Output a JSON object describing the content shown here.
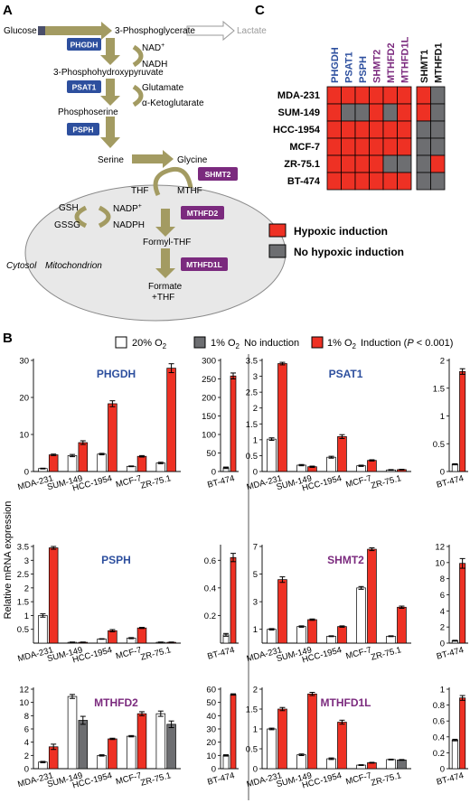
{
  "panels": {
    "a": "A",
    "b": "B",
    "c": "C"
  },
  "pathway": {
    "glucose": "Glucose",
    "pg3": "3-Phosphoglycerate",
    "lactate": "Lactate",
    "phgdh": "PHGDH",
    "nadp": "NAD",
    "nadp_sup": "+",
    "nadh": "NADH",
    "php": "3-Phosphohydroxypyruvate",
    "psat1": "PSAT1",
    "glutamate": "Glutamate",
    "akg": "α-Ketoglutarate",
    "phosphoserine": "Phosphoserine",
    "psph": "PSPH",
    "serine": "Serine",
    "glycine": "Glycine",
    "shmt2": "SHMT2",
    "thf": "THF",
    "mthf": "MTHF",
    "gsh": "GSH",
    "gssg": "GSSG",
    "nadpplus": "NADP",
    "nadpplus_sup": "+",
    "nadph": "NADPH",
    "mthfd2": "MTHFD2",
    "formylthf": "Formyl-THF",
    "mthfd1l": "MTHFD1L",
    "formate1": "Formate",
    "formate2": "+THF",
    "cytosol": "Cytosol",
    "mito": "Mitochondrion"
  },
  "heatmap": {
    "genes_blue": [
      "PHGDH",
      "PSAT1",
      "PSPH"
    ],
    "genes_purple": [
      "SHMT2",
      "MTHFD2",
      "MTHFD1L"
    ],
    "genes_black": [
      "SHMT1",
      "MTHFD1"
    ],
    "rows": [
      "MDA-231",
      "SUM-149",
      "HCC-1954",
      "MCF-7",
      "ZR-75.1",
      "BT-474"
    ],
    "matrix": [
      [
        1,
        1,
        1,
        1,
        1,
        1,
        1,
        0
      ],
      [
        1,
        0,
        0,
        1,
        0,
        1,
        1,
        0
      ],
      [
        1,
        1,
        1,
        1,
        1,
        1,
        0,
        0
      ],
      [
        1,
        1,
        1,
        1,
        1,
        1,
        0,
        0
      ],
      [
        1,
        1,
        1,
        1,
        0,
        0,
        0,
        1
      ],
      [
        1,
        1,
        1,
        1,
        1,
        1,
        0,
        0
      ]
    ],
    "legend_red": "Hypoxic induction",
    "legend_gray": "No hypoxic induction",
    "colors": {
      "red": "#ee3124",
      "gray": "#6d6e71"
    }
  },
  "legend_b": {
    "white_main": "20% O",
    "white_sub": "2",
    "gray_main": "1% O",
    "gray_sub": "2",
    "gray_tail": "No induction",
    "red_main": "1% O",
    "red_sub": "2",
    "red_tail1": "Induction (",
    "red_p": "P",
    "red_tail2": " < 0.001)"
  },
  "y_axis_label": "Relative mRNA expression",
  "chart_data": [
    {
      "type": "bar",
      "title": "PHGDH",
      "title_color": "#2d4f9e",
      "categories": [
        "MDA-231",
        "SUM-149",
        "HCC-1954",
        "MCF-7",
        "ZR-75.1"
      ],
      "ylim": [
        0,
        30
      ],
      "yticks": [
        0,
        10,
        20,
        30
      ],
      "series": [
        {
          "values": [
            0.8,
            4.3,
            4.7,
            1.4,
            2.3
          ],
          "errors": [
            0.1,
            0.3,
            0.2,
            0.1,
            0.2
          ]
        },
        {
          "values": [
            4.5,
            7.8,
            18.3,
            4.1,
            27.9
          ],
          "errors": [
            0.2,
            0.5,
            0.8,
            0.2,
            1.2
          ]
        }
      ],
      "colors": [
        "#ffffff",
        "#ee3124"
      ],
      "inset": {
        "category": "BT-474",
        "ylim": [
          0,
          300
        ],
        "yticks": [
          0,
          50,
          100,
          150,
          200,
          250,
          300
        ],
        "values": [
          10,
          258
        ],
        "errors": [
          2,
          8
        ],
        "colors": [
          "#ffffff",
          "#ee3124"
        ]
      }
    },
    {
      "type": "bar",
      "title": "PSAT1",
      "title_color": "#2d4f9e",
      "categories": [
        "MDA-231",
        "SUM-149",
        "HCC-1954",
        "MCF-7",
        "ZR-75.1"
      ],
      "ylim": [
        0,
        3.5
      ],
      "yticks": [
        0,
        0.5,
        1,
        1.5,
        2,
        2.5,
        3,
        3.5
      ],
      "series": [
        {
          "values": [
            1.02,
            0.2,
            0.45,
            0.18,
            0.05
          ],
          "errors": [
            0.04,
            0.02,
            0.03,
            0.02,
            0.01
          ]
        },
        {
          "values": [
            3.4,
            0.15,
            1.1,
            0.35,
            0.06
          ],
          "errors": [
            0.04,
            0.02,
            0.06,
            0.02,
            0.01
          ]
        }
      ],
      "colors": [
        "#ffffff",
        "#ee3124"
      ],
      "inset": {
        "category": "BT-474",
        "ylim": [
          0,
          2
        ],
        "yticks": [
          0,
          0.5,
          1,
          1.5,
          2
        ],
        "values": [
          0.13,
          1.8
        ],
        "errors": [
          0.01,
          0.05
        ],
        "colors": [
          "#ffffff",
          "#ee3124"
        ]
      }
    },
    {
      "type": "bar",
      "title": "PSPH",
      "title_color": "#2d4f9e",
      "categories": [
        "MDA-231",
        "SUM-149",
        "HCC-1954",
        "MCF-7",
        "ZR-75.1"
      ],
      "ylim": [
        0,
        3.5
      ],
      "yticks": [
        0.5,
        1,
        1.5,
        2,
        2.5,
        3,
        3.5
      ],
      "series": [
        {
          "values": [
            1.0,
            0.03,
            0.15,
            0.18,
            0.03
          ],
          "errors": [
            0.06,
            0.01,
            0.01,
            0.02,
            0.01
          ]
        },
        {
          "values": [
            3.45,
            0.03,
            0.45,
            0.55,
            0.03
          ],
          "errors": [
            0.05,
            0.01,
            0.04,
            0.02,
            0.01
          ]
        }
      ],
      "colors": [
        "#ffffff",
        "#ee3124"
      ],
      "inset": {
        "category": "BT-474",
        "ylim": [
          0,
          0.7
        ],
        "yticks": [
          0.2,
          0.4,
          0.6
        ],
        "values": [
          0.06,
          0.62
        ],
        "errors": [
          0.01,
          0.03
        ],
        "colors": [
          "#ffffff",
          "#ee3124"
        ]
      }
    },
    {
      "type": "bar",
      "title": "SHMT2",
      "title_color": "#7b2a7e",
      "categories": [
        "MDA-231",
        "SUM-149",
        "HCC-1954",
        "MCF-7",
        "ZR-75.1"
      ],
      "ylim": [
        0,
        7
      ],
      "yticks": [
        1,
        3,
        5,
        7
      ],
      "series": [
        {
          "values": [
            1.0,
            1.2,
            0.5,
            4.0,
            0.5
          ],
          "errors": [
            0.05,
            0.05,
            0.03,
            0.1,
            0.03
          ]
        },
        {
          "values": [
            4.6,
            1.7,
            1.2,
            6.8,
            2.6
          ],
          "errors": [
            0.2,
            0.05,
            0.05,
            0.1,
            0.08
          ]
        }
      ],
      "colors": [
        "#ffffff",
        "#ee3124"
      ],
      "inset": {
        "category": "BT-474",
        "ylim": [
          0,
          12
        ],
        "yticks": [
          0,
          2,
          4,
          6,
          8,
          10,
          12
        ],
        "values": [
          0.3,
          9.9
        ],
        "errors": [
          0.05,
          0.6
        ],
        "colors": [
          "#ffffff",
          "#ee3124"
        ]
      }
    },
    {
      "type": "bar",
      "title": "MTHFD2",
      "title_color": "#7b2a7e",
      "categories": [
        "MDA-231",
        "SUM-149",
        "HCC-1954",
        "MCF-7",
        "ZR-75.1"
      ],
      "ylim": [
        0,
        12
      ],
      "yticks": [
        0,
        2,
        4,
        6,
        8,
        10,
        12
      ],
      "series": [
        {
          "values": [
            1.0,
            10.9,
            2.0,
            4.9,
            8.3
          ],
          "errors": [
            0.1,
            0.3,
            0.1,
            0.1,
            0.4
          ]
        },
        {
          "values": [
            3.3,
            7.3,
            4.5,
            8.3,
            6.7
          ],
          "errors": [
            0.4,
            0.6,
            0.1,
            0.3,
            0.5
          ]
        }
      ],
      "colors": [
        "#ffffff",
        "#ee3124"
      ],
      "second_colors": [
        "#ee3124",
        "#6d6e71",
        "#ee3124",
        "#ee3124",
        "#6d6e71"
      ],
      "inset": {
        "category": "BT-474",
        "ylim": [
          0,
          60
        ],
        "yticks": [
          0,
          10,
          20,
          30,
          40,
          50,
          60
        ],
        "values": [
          10,
          56
        ],
        "errors": [
          0.5,
          0.5
        ],
        "colors": [
          "#ffffff",
          "#ee3124"
        ]
      }
    },
    {
      "type": "bar",
      "title": "MTHFD1L",
      "title_color": "#7b2a7e",
      "categories": [
        "MDA-231",
        "SUM-149",
        "HCC-1954",
        "MCF-7",
        "ZR-75.1"
      ],
      "ylim": [
        0,
        2
      ],
      "yticks": [
        0,
        0.5,
        1,
        1.5,
        2
      ],
      "series": [
        {
          "values": [
            1.0,
            0.35,
            0.25,
            0.09,
            0.23
          ],
          "errors": [
            0.02,
            0.02,
            0.02,
            0.01,
            0.01
          ]
        },
        {
          "values": [
            1.5,
            1.88,
            1.17,
            0.15,
            0.22
          ],
          "errors": [
            0.04,
            0.04,
            0.05,
            0.01,
            0.01
          ]
        }
      ],
      "colors": [
        "#ffffff",
        "#ee3124"
      ],
      "second_colors": [
        "#ee3124",
        "#ee3124",
        "#ee3124",
        "#ee3124",
        "#6d6e71"
      ],
      "inset": {
        "category": "BT-474",
        "ylim": [
          0,
          1
        ],
        "yticks": [
          0,
          0.2,
          0.4,
          0.6,
          0.8,
          1
        ],
        "values": [
          0.36,
          0.89
        ],
        "errors": [
          0.01,
          0.03
        ],
        "colors": [
          "#ffffff",
          "#ee3124"
        ]
      }
    }
  ]
}
